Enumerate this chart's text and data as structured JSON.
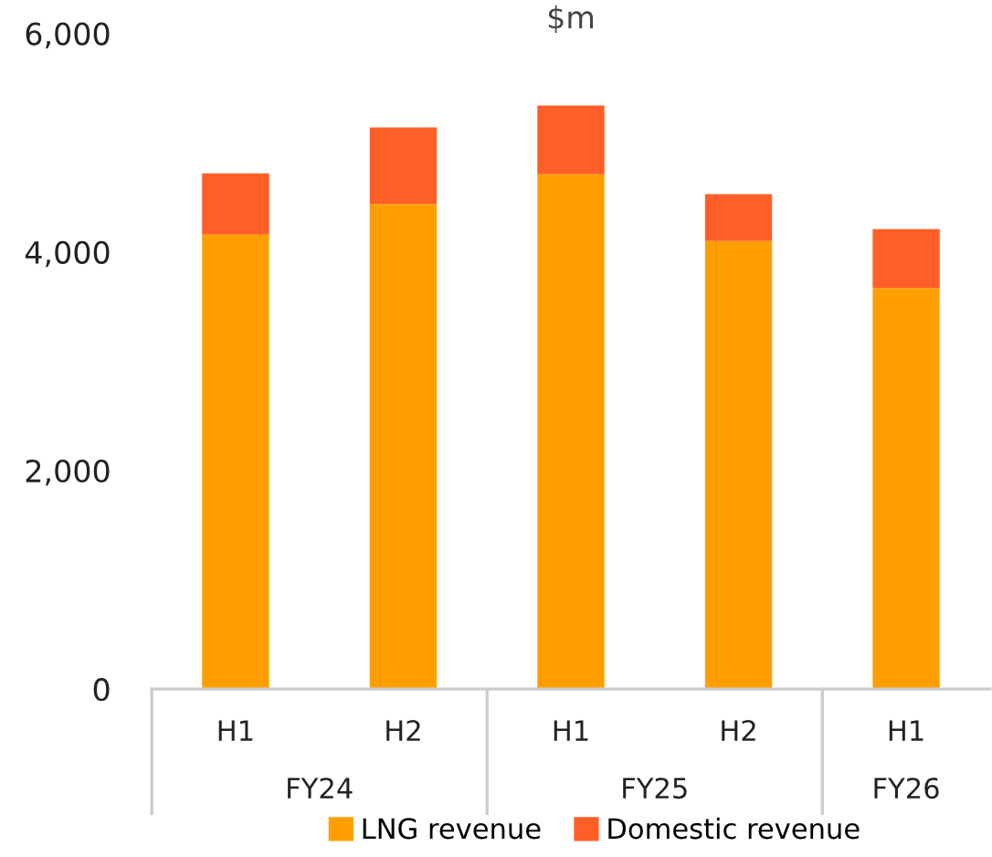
{
  "chart_data": {
    "type": "bar",
    "title": "$m",
    "stacked": true,
    "categories": [
      "H1",
      "H2",
      "H1",
      "H2",
      "H1"
    ],
    "series": [
      {
        "name": "LNG revenue",
        "color": "#ff9e00",
        "values": [
          4160,
          4440,
          4710,
          4100,
          3670
        ]
      },
      {
        "name": "Domestic revenue",
        "color": "#ff5f26",
        "values": [
          560,
          700,
          630,
          430,
          540
        ]
      }
    ],
    "annotations": [
      "FY24",
      "FY25",
      "FY26"
    ],
    "ylim": [
      0,
      6000
    ],
    "yticks": [
      {
        "value": 0,
        "label": "0"
      },
      {
        "value": 2000,
        "label": "2,000"
      },
      {
        "value": 4000,
        "label": "4,000"
      },
      {
        "value": 6000,
        "label": "6,000"
      }
    ],
    "legend": "bottom"
  }
}
